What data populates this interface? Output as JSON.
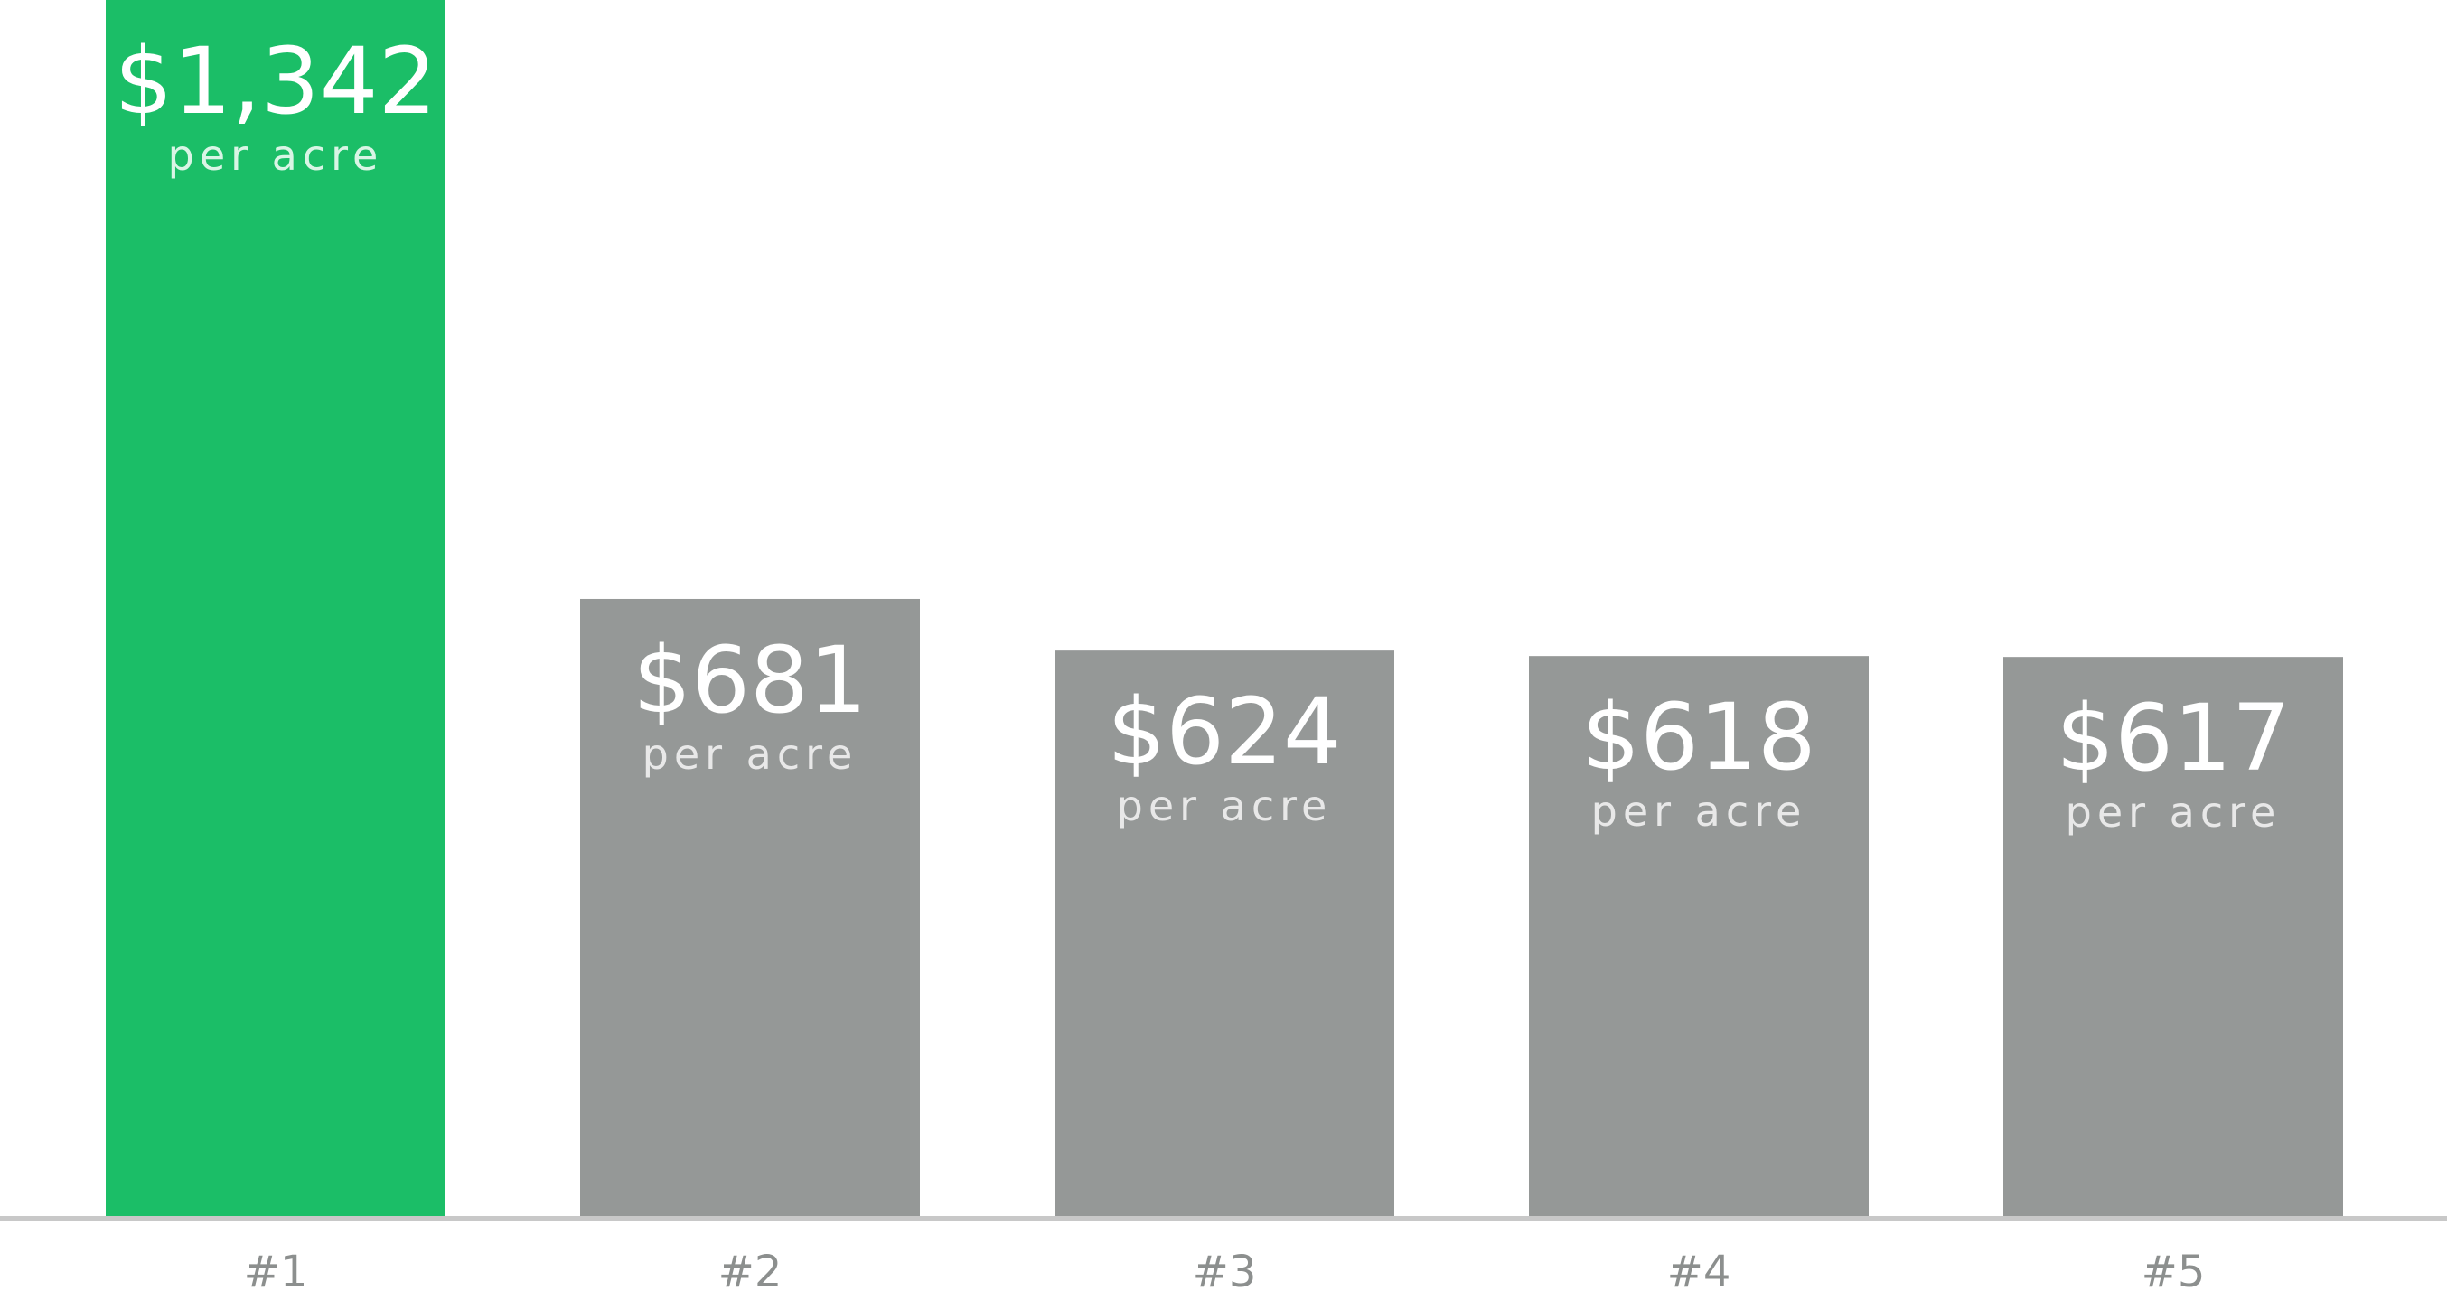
{
  "chart_data": {
    "type": "bar",
    "categories": [
      "#1",
      "#2",
      "#3",
      "#4",
      "#5"
    ],
    "values": [
      1342,
      681,
      624,
      618,
      617
    ],
    "value_labels": [
      "$1,342",
      "$681",
      "$624",
      "$618",
      "$617"
    ],
    "unit_label": "per acre",
    "ylim": [
      0,
      1342
    ],
    "grid": false,
    "legend": "none",
    "highlight_color": "#1bbe67",
    "bar_color": "#959897",
    "axis_color": "#c8c8c8"
  }
}
